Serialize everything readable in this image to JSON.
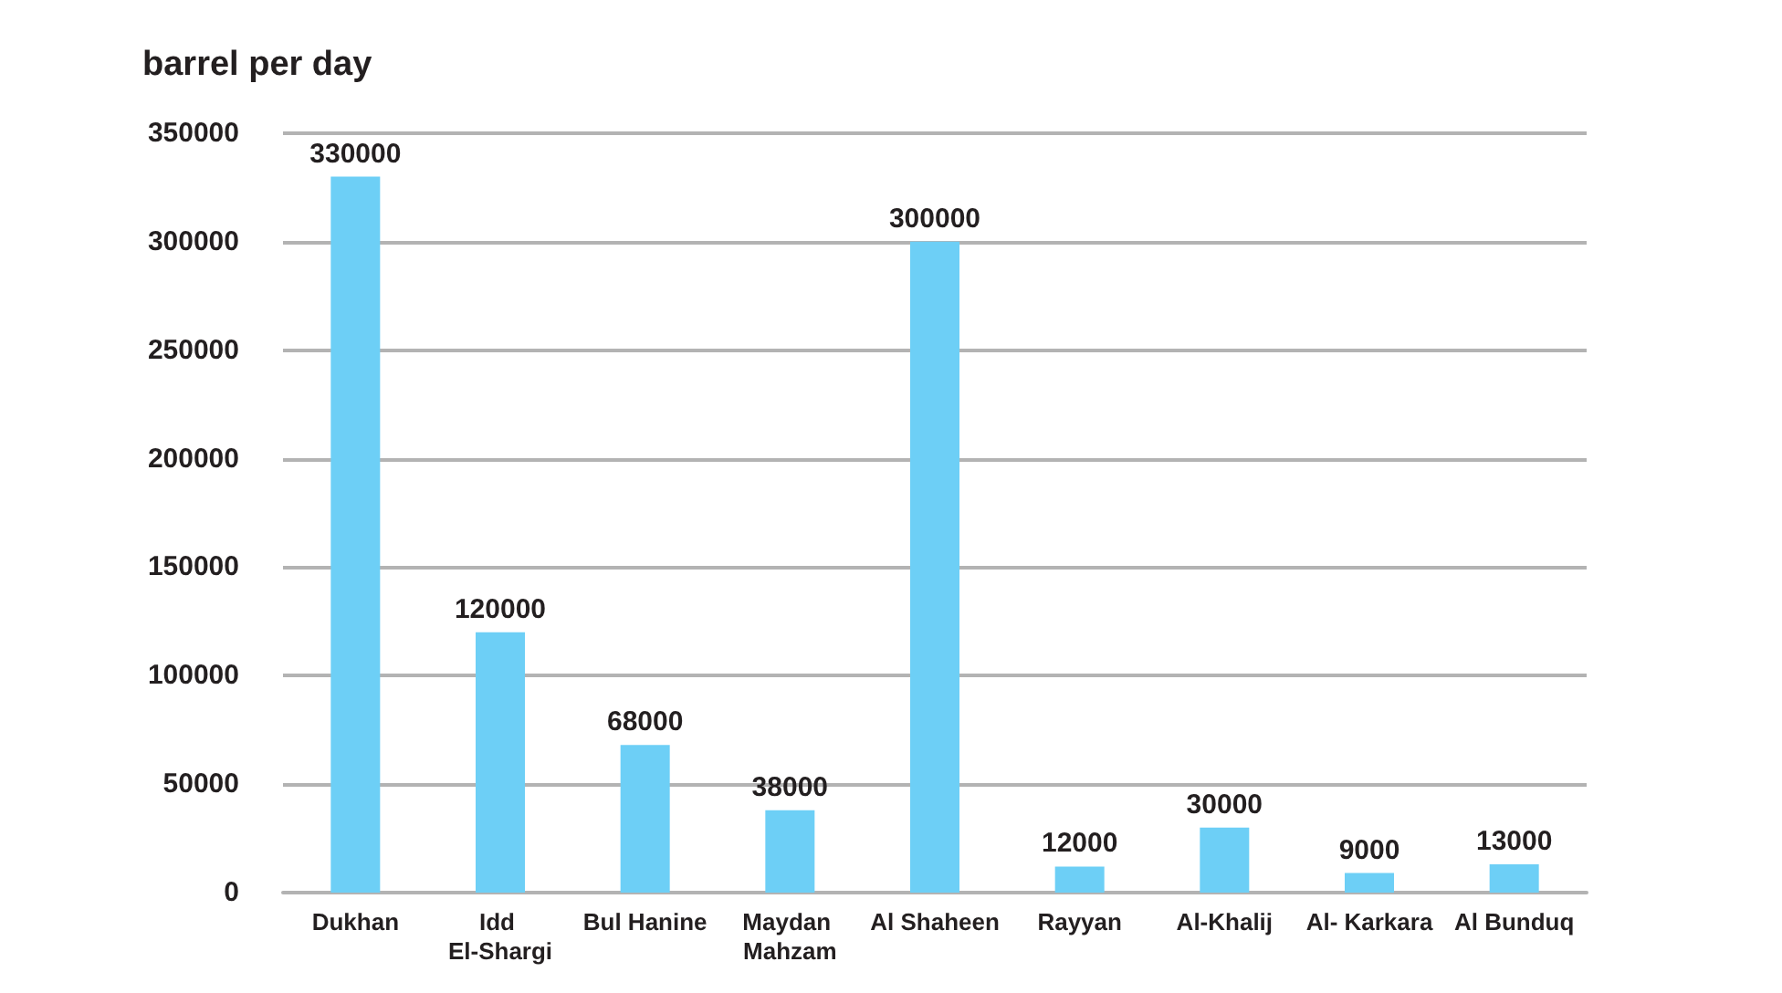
{
  "chart_data": {
    "type": "bar",
    "ylabel": "barrel per day",
    "categories": [
      "Dukhan",
      "Idd El-Shargi",
      "Bul Hanine",
      "Maydan Mahzam",
      "Al Shaheen",
      "Rayyan",
      "Al-Khalij",
      "Al- Karkara",
      "Al Bunduq"
    ],
    "values": [
      330000,
      120000,
      68000,
      38000,
      300000,
      12000,
      30000,
      9000,
      13000
    ],
    "color": "#6dcff6",
    "ylim": [
      0,
      350000
    ],
    "yticks": [
      0,
      50000,
      100000,
      150000,
      200000,
      250000,
      300000,
      350000
    ],
    "grid": "y",
    "data_labels": true
  }
}
